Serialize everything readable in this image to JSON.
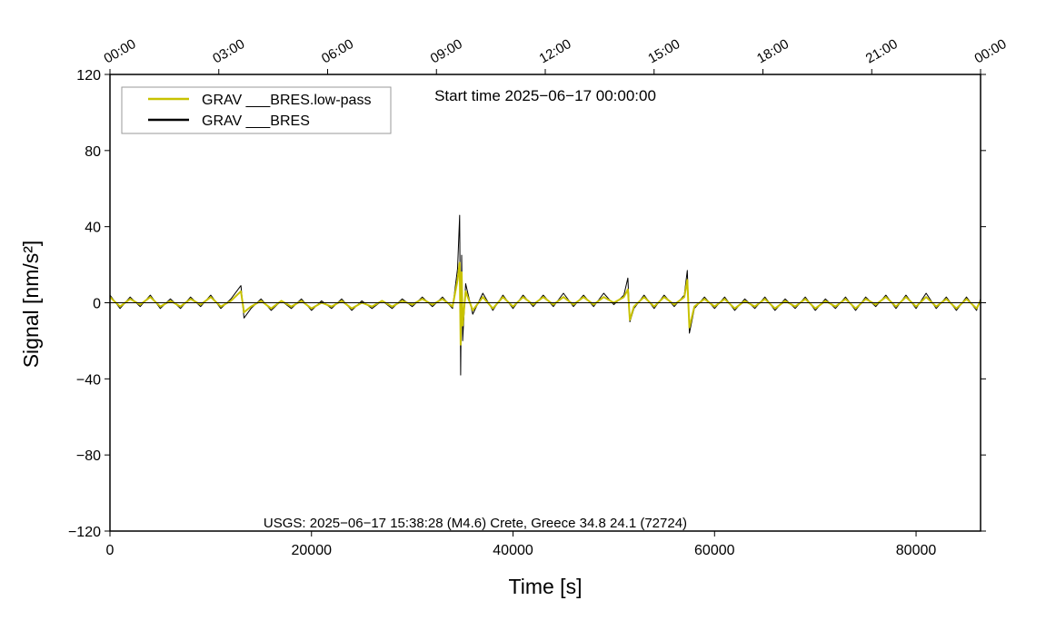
{
  "chart_data": {
    "type": "line",
    "xlabel": "Time [s]",
    "ylabel": "Signal [nm/s²]",
    "annotations": [
      "Start time 2025−06−17 00:00:00",
      "USGS: 2025−06−17 15:38:28 (M4.6) Crete, Greece 34.8 24.1 (72724)"
    ],
    "xlim": [
      0,
      86400
    ],
    "ylim": [
      -120,
      120
    ],
    "xticks": [
      0,
      20000,
      40000,
      60000,
      80000
    ],
    "yticks": [
      {
        "value": -120,
        "label": "−120"
      },
      {
        "value": -80,
        "label": "−80"
      },
      {
        "value": -40,
        "label": "−40"
      },
      0,
      40,
      80,
      120
    ],
    "top_xticks": [
      {
        "value": 0,
        "label": "00:00"
      },
      {
        "value": 10800,
        "label": "03:00"
      },
      {
        "value": 21600,
        "label": "06:00"
      },
      {
        "value": 32400,
        "label": "09:00"
      },
      {
        "value": 43200,
        "label": "12:00"
      },
      {
        "value": 54000,
        "label": "15:00"
      },
      {
        "value": 64800,
        "label": "18:00"
      },
      {
        "value": 75600,
        "label": "21:00"
      },
      {
        "value": 86400,
        "label": "00:00"
      }
    ],
    "legend": "upper left",
    "grid": false,
    "x": [
      0,
      1000,
      2000,
      3000,
      4000,
      5000,
      6000,
      7000,
      8000,
      9000,
      10000,
      11000,
      12000,
      13000,
      13300,
      14000,
      15000,
      16000,
      17000,
      18000,
      19000,
      20000,
      21000,
      22000,
      23000,
      24000,
      25000,
      26000,
      27000,
      28000,
      29000,
      30000,
      31000,
      32000,
      33000,
      34000,
      34500,
      34700,
      34800,
      34900,
      35000,
      35300,
      36000,
      37000,
      38000,
      39000,
      40000,
      41000,
      42000,
      43000,
      44000,
      45000,
      46000,
      47000,
      48000,
      49000,
      50000,
      51000,
      51400,
      51600,
      52000,
      53000,
      54000,
      55000,
      56000,
      57000,
      57300,
      57500,
      58000,
      59000,
      60000,
      61000,
      62000,
      63000,
      64000,
      65000,
      66000,
      67000,
      68000,
      69000,
      70000,
      71000,
      72000,
      73000,
      74000,
      75000,
      76000,
      77000,
      78000,
      79000,
      80000,
      81000,
      82000,
      83000,
      84000,
      85000,
      86000,
      86400
    ],
    "series": [
      {
        "name": "GRAV ___BRES.low-pass",
        "color": "#c8c200",
        "values": [
          3,
          -2,
          2,
          -1,
          3,
          -2,
          1,
          -2,
          2,
          -1,
          3,
          -2,
          1,
          6,
          -5,
          -2,
          1,
          -3,
          1,
          -2,
          1,
          -3,
          0,
          -2,
          1,
          -3,
          0,
          -2,
          1,
          -2,
          1,
          -1,
          2,
          -1,
          2,
          -2,
          12,
          21,
          -22,
          16,
          -12,
          6,
          -4,
          3,
          -3,
          3,
          -2,
          3,
          -1,
          3,
          -1,
          3,
          -1,
          3,
          -1,
          3,
          0,
          3,
          7,
          -9,
          -2,
          3,
          -2,
          3,
          -1,
          3,
          12,
          -13,
          -2,
          2,
          -2,
          2,
          -3,
          1,
          -2,
          2,
          -3,
          1,
          -2,
          2,
          -3,
          1,
          -2,
          2,
          -3,
          2,
          -1,
          3,
          -2,
          3,
          -2,
          3,
          -2,
          2,
          -3,
          2,
          -3,
          1
        ]
      },
      {
        "name": "GRAV ___BRES",
        "color": "#000000",
        "values": [
          4,
          -3,
          3,
          -2,
          4,
          -3,
          2,
          -3,
          3,
          -2,
          4,
          -3,
          2,
          9,
          -8,
          -3,
          2,
          -4,
          1,
          -3,
          2,
          -4,
          1,
          -3,
          2,
          -4,
          1,
          -3,
          1,
          -3,
          2,
          -2,
          3,
          -2,
          3,
          -3,
          18,
          46,
          -38,
          25,
          -20,
          10,
          -6,
          5,
          -4,
          4,
          -3,
          4,
          -2,
          4,
          -2,
          5,
          -2,
          4,
          -2,
          5,
          -1,
          4,
          13,
          -10,
          -3,
          4,
          -3,
          4,
          -2,
          4,
          17,
          -16,
          -3,
          3,
          -3,
          3,
          -4,
          2,
          -3,
          3,
          -4,
          2,
          -3,
          3,
          -4,
          2,
          -3,
          3,
          -4,
          3,
          -2,
          4,
          -3,
          4,
          -3,
          5,
          -3,
          3,
          -4,
          3,
          -4,
          2
        ]
      }
    ]
  }
}
